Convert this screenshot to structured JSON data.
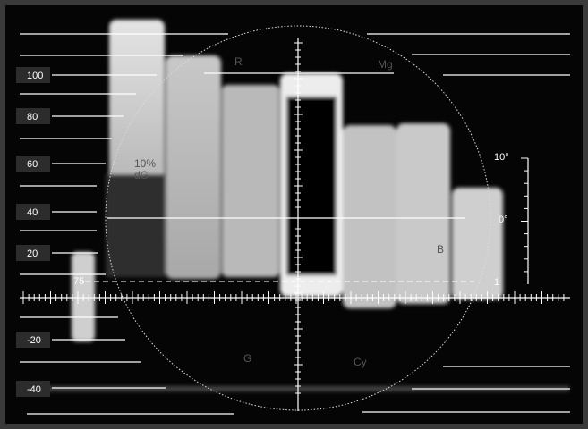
{
  "scale_labels": [
    "100",
    "80",
    "60",
    "40",
    "20",
    "-20",
    "-40"
  ],
  "phase_labels": [
    "10°",
    "0°",
    "1"
  ],
  "setup_label": "75",
  "vector_labels": [
    "R",
    "Mg",
    "B",
    "G",
    "Cy",
    "10%",
    "dG"
  ]
}
